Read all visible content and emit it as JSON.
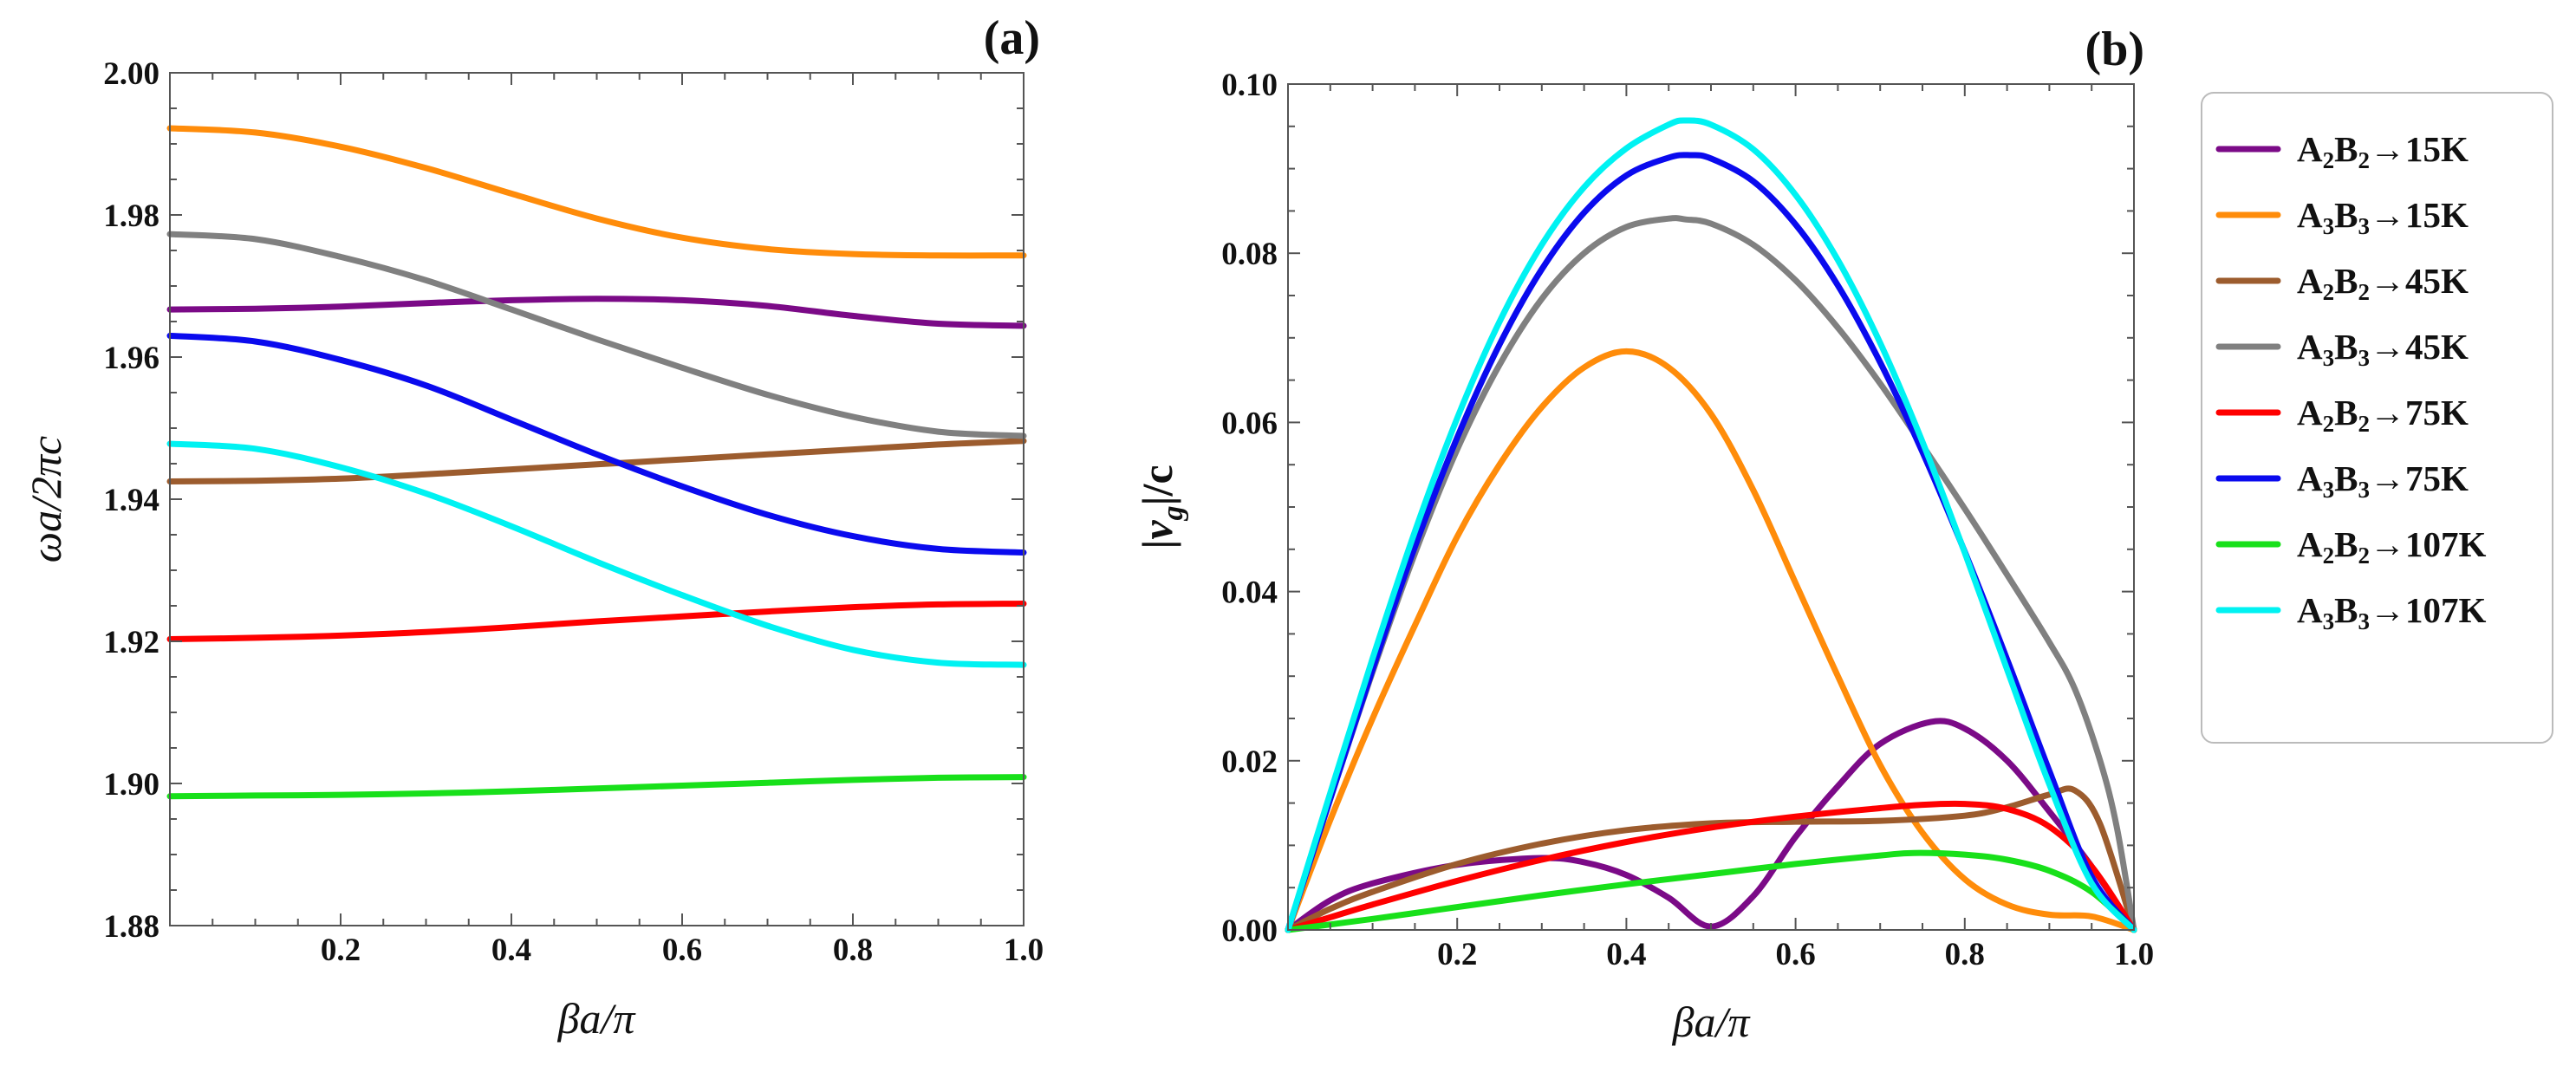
{
  "chart_data": [
    {
      "type": "line",
      "panel_label": "(a)",
      "xlabel": "βa/π",
      "ylabel": "ωa/2πc",
      "xlim": [
        0.0,
        1.0
      ],
      "ylim": [
        1.88,
        2.0
      ],
      "xticks": [
        "0.2",
        "0.4",
        "0.6",
        "0.8",
        "1.0"
      ],
      "xtick_values": [
        0.2,
        0.4,
        0.6,
        0.8,
        1.0
      ],
      "yticks": [
        "1.88",
        "1.90",
        "1.92",
        "1.94",
        "1.96",
        "1.98",
        "2.00"
      ],
      "ytick_values": [
        1.88,
        1.9,
        1.92,
        1.94,
        1.96,
        1.98,
        2.0
      ],
      "x": [
        0.0,
        0.1,
        0.2,
        0.3,
        0.4,
        0.5,
        0.6,
        0.7,
        0.8,
        0.9,
        1.0
      ],
      "series": [
        {
          "name": "A2B2→15K",
          "color": "#7b0a87",
          "values": [
            1.9667,
            1.9668,
            1.9671,
            1.9676,
            1.968,
            1.9682,
            1.968,
            1.9672,
            1.9658,
            1.9647,
            1.9644
          ]
        },
        {
          "name": "A3B3→15K",
          "color": "#ff8c0a",
          "values": [
            1.9922,
            1.9916,
            1.9896,
            1.9866,
            1.983,
            1.9795,
            1.9768,
            1.9752,
            1.9745,
            1.9743,
            1.9743
          ]
        },
        {
          "name": "A2B2→45K",
          "color": "#9c5c2e",
          "values": [
            1.9425,
            1.9426,
            1.9429,
            1.9435,
            1.9442,
            1.9449,
            1.9456,
            1.9463,
            1.947,
            1.9477,
            1.9482
          ]
        },
        {
          "name": "A3B3→45K",
          "color": "#808080",
          "values": [
            1.9773,
            1.9766,
            1.9741,
            1.9708,
            1.9667,
            1.9625,
            1.9585,
            1.9547,
            1.9516,
            1.9495,
            1.9489
          ]
        },
        {
          "name": "A2B2→75K",
          "color": "#ff0000",
          "values": [
            1.9203,
            1.9205,
            1.9208,
            1.9213,
            1.922,
            1.9228,
            1.9235,
            1.9242,
            1.9248,
            1.9252,
            1.9253
          ]
        },
        {
          "name": "A3B3→75K",
          "color": "#0a0aee",
          "values": [
            1.963,
            1.9622,
            1.9596,
            1.956,
            1.9512,
            1.9463,
            1.9418,
            1.9378,
            1.9348,
            1.933,
            1.9325
          ]
        },
        {
          "name": "A2B2→107K",
          "color": "#18e01a",
          "values": [
            1.8982,
            1.8983,
            1.8984,
            1.8986,
            1.8989,
            1.8993,
            1.8997,
            1.9001,
            1.9005,
            1.9008,
            1.9009
          ]
        },
        {
          "name": "A3B3→107K",
          "color": "#00f2f2",
          "values": [
            1.9478,
            1.9471,
            1.9445,
            1.9408,
            1.9362,
            1.9312,
            1.9265,
            1.9222,
            1.9188,
            1.917,
            1.9167
          ]
        }
      ]
    },
    {
      "type": "line",
      "panel_label": "(b)",
      "xlabel": "βa/π",
      "ylabel": "|vg|/c",
      "xlim": [
        0.0,
        1.0
      ],
      "ylim": [
        0.0,
        0.1
      ],
      "xticks": [
        "0.2",
        "0.4",
        "0.6",
        "0.8",
        "1.0"
      ],
      "xtick_values": [
        0.2,
        0.4,
        0.6,
        0.8,
        1.0
      ],
      "yticks": [
        "0.00",
        "0.02",
        "0.04",
        "0.06",
        "0.08",
        "0.10"
      ],
      "ytick_values": [
        0.0,
        0.02,
        0.04,
        0.06,
        0.08,
        0.1
      ],
      "series": [
        {
          "name": "A2B2→15K",
          "color": "#7b0a87",
          "x": [
            0.0,
            0.05,
            0.1,
            0.2,
            0.3,
            0.35,
            0.4,
            0.45,
            0.5,
            0.55,
            0.6,
            0.65,
            0.7,
            0.76,
            0.8,
            0.85,
            0.9,
            0.95,
            1.0
          ],
          "values": [
            0.0,
            0.0035,
            0.0055,
            0.0077,
            0.0085,
            0.008,
            0.0065,
            0.0038,
            0.0004,
            0.004,
            0.011,
            0.017,
            0.022,
            0.0246,
            0.0238,
            0.02,
            0.014,
            0.0075,
            0.0
          ]
        },
        {
          "name": "A3B3→15K",
          "color": "#ff8c0a",
          "x": [
            0.0,
            0.05,
            0.1,
            0.15,
            0.2,
            0.25,
            0.3,
            0.35,
            0.4,
            0.45,
            0.5,
            0.55,
            0.6,
            0.65,
            0.7,
            0.75,
            0.8,
            0.85,
            0.9,
            0.95,
            1.0
          ],
          "values": [
            0.0,
            0.013,
            0.025,
            0.036,
            0.0465,
            0.055,
            0.0618,
            0.0665,
            0.0684,
            0.0665,
            0.061,
            0.052,
            0.041,
            0.03,
            0.0195,
            0.0115,
            0.006,
            0.003,
            0.0018,
            0.0016,
            0.0
          ]
        },
        {
          "name": "A2B2→45K",
          "color": "#9c5c2e",
          "x": [
            0.0,
            0.05,
            0.1,
            0.2,
            0.3,
            0.4,
            0.5,
            0.6,
            0.7,
            0.8,
            0.85,
            0.9,
            0.93,
            0.96,
            1.0
          ],
          "values": [
            0.0,
            0.0025,
            0.0045,
            0.0078,
            0.0102,
            0.0118,
            0.0126,
            0.0128,
            0.0129,
            0.0135,
            0.0145,
            0.016,
            0.0165,
            0.0125,
            0.0
          ]
        },
        {
          "name": "A3B3→45K",
          "color": "#808080",
          "x": [
            0.0,
            0.05,
            0.1,
            0.15,
            0.2,
            0.25,
            0.3,
            0.35,
            0.4,
            0.45,
            0.47,
            0.5,
            0.55,
            0.6,
            0.65,
            0.7,
            0.75,
            0.8,
            0.85,
            0.9,
            0.93,
            0.96,
            0.98,
            1.0
          ],
          "values": [
            0.0,
            0.0155,
            0.0305,
            0.0445,
            0.0568,
            0.0668,
            0.0746,
            0.08,
            0.0831,
            0.0841,
            0.084,
            0.0835,
            0.081,
            0.0768,
            0.0712,
            0.0646,
            0.0573,
            0.0498,
            0.042,
            0.034,
            0.0285,
            0.02,
            0.012,
            0.0
          ]
        },
        {
          "name": "A2B2→75K",
          "color": "#ff0000",
          "x": [
            0.0,
            0.05,
            0.1,
            0.2,
            0.3,
            0.4,
            0.5,
            0.6,
            0.7,
            0.75,
            0.8,
            0.85,
            0.9,
            0.95,
            1.0
          ],
          "values": [
            0.0,
            0.0015,
            0.003,
            0.0058,
            0.0083,
            0.0104,
            0.0121,
            0.0134,
            0.0144,
            0.0148,
            0.0149,
            0.0143,
            0.0122,
            0.0075,
            0.0
          ]
        },
        {
          "name": "A3B3→75K",
          "color": "#0a0aee",
          "x": [
            0.0,
            0.05,
            0.1,
            0.15,
            0.2,
            0.25,
            0.3,
            0.35,
            0.4,
            0.45,
            0.475,
            0.5,
            0.55,
            0.6,
            0.65,
            0.7,
            0.75,
            0.8,
            0.85,
            0.9,
            0.95,
            1.0
          ],
          "values": [
            0.0,
            0.0155,
            0.0308,
            0.0453,
            0.0582,
            0.0692,
            0.0781,
            0.0848,
            0.0892,
            0.0913,
            0.0916,
            0.0912,
            0.0885,
            0.0834,
            0.0762,
            0.0671,
            0.0565,
            0.0447,
            0.032,
            0.0188,
            0.0063,
            0.0
          ]
        },
        {
          "name": "A2B2→107K",
          "color": "#18e01a",
          "x": [
            0.0,
            0.1,
            0.2,
            0.3,
            0.4,
            0.5,
            0.6,
            0.7,
            0.74,
            0.8,
            0.85,
            0.9,
            0.95,
            1.0
          ],
          "values": [
            0.0,
            0.0013,
            0.0027,
            0.0041,
            0.0054,
            0.0066,
            0.0078,
            0.0088,
            0.0091,
            0.0089,
            0.0083,
            0.007,
            0.0045,
            0.0
          ]
        },
        {
          "name": "A3B3→107K",
          "color": "#00f2f2",
          "x": [
            0.0,
            0.05,
            0.1,
            0.15,
            0.2,
            0.25,
            0.3,
            0.35,
            0.4,
            0.45,
            0.47,
            0.5,
            0.55,
            0.6,
            0.65,
            0.7,
            0.75,
            0.8,
            0.85,
            0.9,
            0.95,
            1.0
          ],
          "values": [
            0.0,
            0.0162,
            0.0321,
            0.0471,
            0.0605,
            0.0719,
            0.081,
            0.0878,
            0.0924,
            0.0952,
            0.0957,
            0.0952,
            0.0923,
            0.0869,
            0.0792,
            0.0694,
            0.0577,
            0.0446,
            0.0308,
            0.0172,
            0.0055,
            0.0
          ]
        }
      ]
    }
  ],
  "legend": {
    "entries": [
      {
        "prefix": "A",
        "sub1": "2",
        "mid": "B",
        "sub2": "2",
        "suffix": "→15K",
        "color": "#7b0a87"
      },
      {
        "prefix": "A",
        "sub1": "3",
        "mid": "B",
        "sub2": "3",
        "suffix": "→15K",
        "color": "#ff8c0a"
      },
      {
        "prefix": "A",
        "sub1": "2",
        "mid": "B",
        "sub2": "2",
        "suffix": "→45K",
        "color": "#9c5c2e"
      },
      {
        "prefix": "A",
        "sub1": "3",
        "mid": "B",
        "sub2": "3",
        "suffix": "→45K",
        "color": "#808080"
      },
      {
        "prefix": "A",
        "sub1": "2",
        "mid": "B",
        "sub2": "2",
        "suffix": "→75K",
        "color": "#ff0000"
      },
      {
        "prefix": "A",
        "sub1": "3",
        "mid": "B",
        "sub2": "3",
        "suffix": "→75K",
        "color": "#0a0aee"
      },
      {
        "prefix": "A",
        "sub1": "2",
        "mid": "B",
        "sub2": "2",
        "suffix": "→107K",
        "color": "#18e01a"
      },
      {
        "prefix": "A",
        "sub1": "3",
        "mid": "B",
        "sub2": "3",
        "suffix": "→107K",
        "color": "#00f2f2"
      }
    ]
  },
  "ylabel_b_parts": {
    "bar1": "|",
    "v": "v",
    "g": "g",
    "rest": "|/c"
  }
}
